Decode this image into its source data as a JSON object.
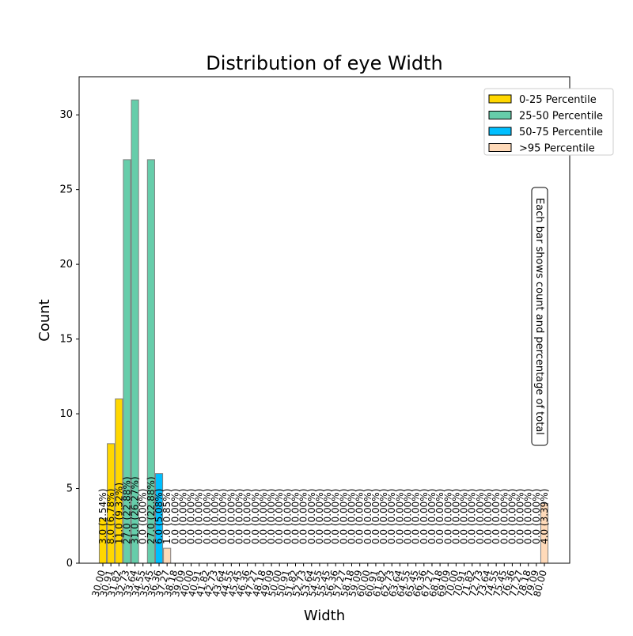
{
  "chart_data": {
    "type": "bar",
    "title": "Distribution of eye Width",
    "x_label": "Width",
    "y_label": "Count",
    "annotation": "Each bar shows count and percentage of total",
    "categories": [
      "30.00",
      "30.91",
      "31.82",
      "32.73",
      "33.64",
      "34.55",
      "35.45",
      "36.36",
      "37.27",
      "38.18",
      "39.09",
      "40.00",
      "40.91",
      "41.82",
      "42.73",
      "43.64",
      "44.55",
      "45.45",
      "46.36",
      "47.27",
      "48.18",
      "49.09",
      "50.00",
      "50.91",
      "51.82",
      "52.73",
      "53.64",
      "54.55",
      "55.45",
      "56.36",
      "57.27",
      "58.18",
      "59.09",
      "60.00",
      "60.91",
      "61.82",
      "62.73",
      "63.64",
      "64.55",
      "65.45",
      "66.36",
      "67.27",
      "68.18",
      "69.09",
      "70.00",
      "70.91",
      "71.82",
      "72.73",
      "73.64",
      "74.55",
      "75.45",
      "76.36",
      "77.27",
      "78.18",
      "79.09",
      "80.00"
    ],
    "values": [
      3,
      8,
      11,
      27,
      31,
      0,
      27,
      6,
      1,
      0,
      0,
      0,
      0,
      0,
      0,
      0,
      0,
      0,
      0,
      0,
      0,
      0,
      0,
      0,
      0,
      0,
      0,
      0,
      0,
      0,
      0,
      0,
      0,
      0,
      0,
      0,
      0,
      0,
      0,
      0,
      0,
      0,
      0,
      0,
      0,
      0,
      0,
      0,
      0,
      0,
      0,
      0,
      0,
      0,
      0,
      4
    ],
    "value_labels": [
      "3.0 (2.54%)",
      "8.0 (6.78%)",
      "11.0 (9.32%)",
      "27.0 (22.88%)",
      "31.0 (26.27%)",
      "0.0 (0.00%)",
      "27.0 (22.88%)",
      "6.0 (5.08%)",
      "1.0 (0.85%)",
      "0.0 (0.00%)",
      "0.0 (0.00%)",
      "0.0 (0.00%)",
      "0.0 (0.00%)",
      "0.0 (0.00%)",
      "0.0 (0.00%)",
      "0.0 (0.00%)",
      "0.0 (0.00%)",
      "0.0 (0.00%)",
      "0.0 (0.00%)",
      "0.0 (0.00%)",
      "0.0 (0.00%)",
      "0.0 (0.00%)",
      "0.0 (0.00%)",
      "0.0 (0.00%)",
      "0.0 (0.00%)",
      "0.0 (0.00%)",
      "0.0 (0.00%)",
      "0.0 (0.00%)",
      "0.0 (0.00%)",
      "0.0 (0.00%)",
      "0.0 (0.00%)",
      "0.0 (0.00%)",
      "0.0 (0.00%)",
      "0.0 (0.00%)",
      "0.0 (0.00%)",
      "0.0 (0.00%)",
      "0.0 (0.00%)",
      "0.0 (0.00%)",
      "0.0 (0.00%)",
      "0.0 (0.00%)",
      "0.0 (0.00%)",
      "0.0 (0.00%)",
      "0.0 (0.00%)",
      "0.0 (0.00%)",
      "0.0 (0.00%)",
      "0.0 (0.00%)",
      "0.0 (0.00%)",
      "0.0 (0.00%)",
      "0.0 (0.00%)",
      "0.0 (0.00%)",
      "0.0 (0.00%)",
      "0.0 (0.00%)",
      "0.0 (0.00%)",
      "0.0 (0.00%)",
      "0.0 (0.00%)",
      "4.0 (3.39%)"
    ],
    "colors": [
      "#ffd700",
      "#ffd700",
      "#ffd700",
      "#66cdaa",
      "#66cdaa",
      "#66cdaa",
      "#66cdaa",
      "#00bfff",
      "#ffdab9",
      "#ffdab9",
      "#ffdab9",
      "#ffdab9",
      "#ffdab9",
      "#ffdab9",
      "#ffdab9",
      "#ffdab9",
      "#ffdab9",
      "#ffdab9",
      "#ffdab9",
      "#ffdab9",
      "#ffdab9",
      "#ffdab9",
      "#ffdab9",
      "#ffdab9",
      "#ffdab9",
      "#ffdab9",
      "#ffdab9",
      "#ffdab9",
      "#ffdab9",
      "#ffdab9",
      "#ffdab9",
      "#ffdab9",
      "#ffdab9",
      "#ffdab9",
      "#ffdab9",
      "#ffdab9",
      "#ffdab9",
      "#ffdab9",
      "#ffdab9",
      "#ffdab9",
      "#ffdab9",
      "#ffdab9",
      "#ffdab9",
      "#ffdab9",
      "#ffdab9",
      "#ffdab9",
      "#ffdab9",
      "#ffdab9",
      "#ffdab9",
      "#ffdab9",
      "#ffdab9",
      "#ffdab9",
      "#ffdab9",
      "#ffdab9",
      "#ffdab9",
      "#ffdab9"
    ],
    "legend": [
      {
        "name": "0-25 Percentile",
        "color": "#ffd700"
      },
      {
        "name": "25-50 Percentile",
        "color": "#66cdaa"
      },
      {
        "name": "50-75 Percentile",
        "color": "#00bfff"
      },
      {
        "name": ">95 Percentile",
        "color": "#ffdab9"
      }
    ],
    "legend_position": "upper right",
    "ylim": [
      0,
      32.55
    ],
    "yticks": [
      0,
      5,
      10,
      15,
      20,
      25,
      30
    ]
  }
}
